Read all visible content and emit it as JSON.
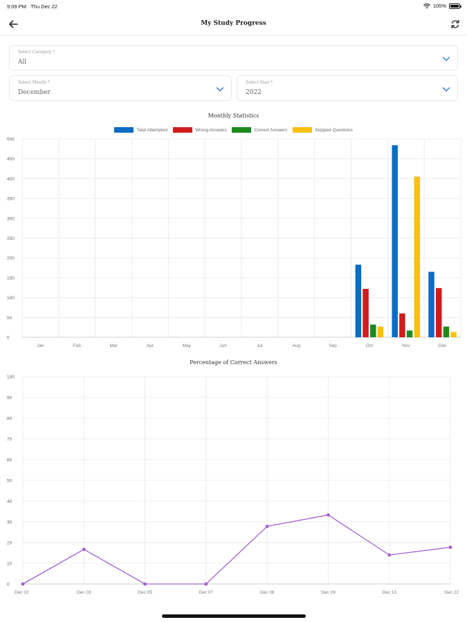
{
  "status_bar": {
    "time": "9:09 PM",
    "date": "Thu Dec 22",
    "battery": "100%"
  },
  "header": {
    "title": "My Study Progress",
    "back_icon": "arrow-left-icon",
    "refresh_icon": "refresh-icon"
  },
  "filters": {
    "category": {
      "label": "Select Category *",
      "value": "All"
    },
    "month": {
      "label": "Select Month *",
      "value": "December"
    },
    "year": {
      "label": "Select Year *",
      "value": "2022"
    }
  },
  "colors": {
    "total": "#0a6cc3",
    "wrong": "#cf1c1c",
    "correct": "#1e8a1e",
    "skipped": "#fbc00d",
    "line": "#a45fd1"
  },
  "chart_data": [
    {
      "type": "bar",
      "title": "Monthly Statistics",
      "categories": [
        "Jan",
        "Feb",
        "Mar",
        "Apr",
        "May",
        "Jun",
        "Jul",
        "Aug",
        "Sep",
        "Oct",
        "Nov",
        "Dec"
      ],
      "series": [
        {
          "name": "Total Attempted",
          "color": "#0a6cc3",
          "values": [
            0,
            0,
            0,
            0,
            0,
            0,
            0,
            0,
            0,
            183,
            484,
            165
          ]
        },
        {
          "name": "Wrong Answers",
          "color": "#cf1c1c",
          "values": [
            0,
            0,
            0,
            0,
            0,
            0,
            0,
            0,
            0,
            122,
            60,
            124
          ]
        },
        {
          "name": "Correct Answers",
          "color": "#1e8a1e",
          "values": [
            0,
            0,
            0,
            0,
            0,
            0,
            0,
            0,
            0,
            32,
            17,
            27
          ]
        },
        {
          "name": "Skipped Questions",
          "color": "#fbc00d",
          "values": [
            0,
            0,
            0,
            0,
            0,
            0,
            0,
            0,
            0,
            27,
            405,
            13
          ]
        }
      ],
      "ylim": [
        0,
        500
      ],
      "yticks": [
        0,
        50,
        100,
        150,
        200,
        250,
        300,
        350,
        400,
        450,
        500
      ],
      "legend": "top",
      "grid": true
    },
    {
      "type": "line",
      "title": "Percentage of Correct Answers",
      "x": [
        "Dec 02",
        "Dec 03",
        "Dec 05",
        "Dec 07",
        "Dec 08",
        "Dec 09",
        "Dec 13",
        "Dec 22"
      ],
      "series": [
        {
          "color": "#a45fd1",
          "values": [
            0,
            16.7,
            0,
            0,
            27.8,
            33.3,
            14,
            17.7
          ]
        }
      ],
      "ylim": [
        0,
        100
      ],
      "yticks": [
        0,
        10,
        20,
        30,
        40,
        50,
        60,
        70,
        80,
        90,
        100
      ],
      "grid": true
    }
  ]
}
